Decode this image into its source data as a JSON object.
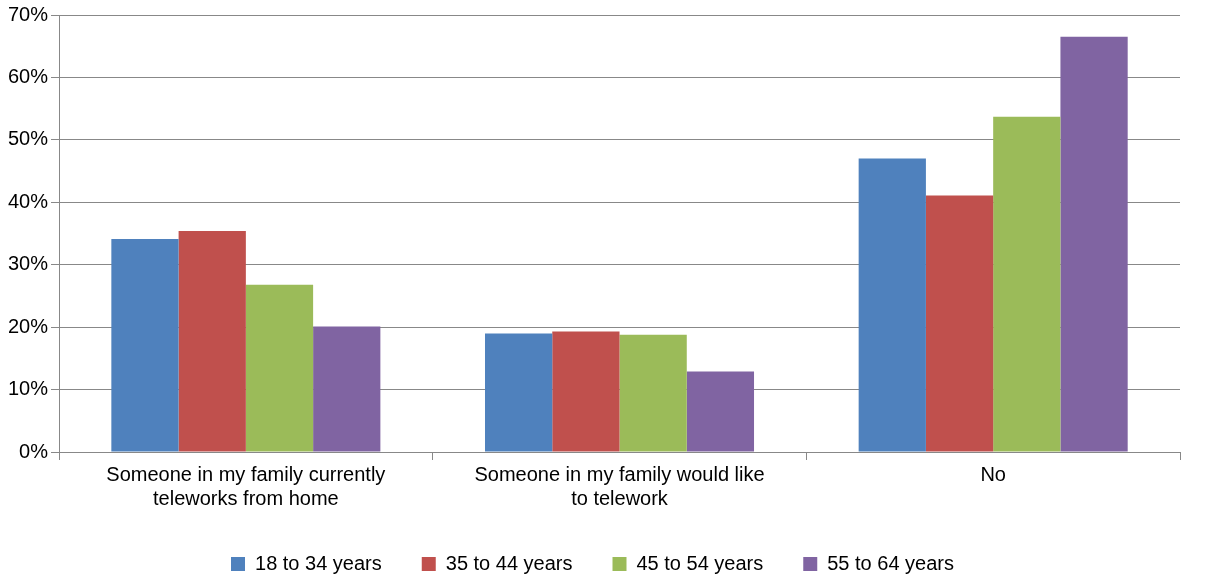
{
  "chart_data": {
    "type": "bar",
    "categories": [
      "Someone in my family currently teleworks from home",
      "Someone in my family would like to telework",
      "No"
    ],
    "series": [
      {
        "name": "18 to 34 years",
        "color": "#4f81bd",
        "values": [
          34.1,
          19.0,
          47.0
        ]
      },
      {
        "name": "35 to 44 years",
        "color": "#c0504d",
        "values": [
          35.4,
          19.3,
          41.1
        ]
      },
      {
        "name": "45 to 54 years",
        "color": "#9bbb59",
        "values": [
          26.8,
          18.8,
          53.7
        ]
      },
      {
        "name": "55 to 64 years",
        "color": "#8064a2",
        "values": [
          20.1,
          12.9,
          66.5
        ]
      }
    ],
    "ylim": [
      0,
      70
    ],
    "yticks": [
      {
        "value": 0,
        "label": "0%"
      },
      {
        "value": 10,
        "label": "10%"
      },
      {
        "value": 20,
        "label": "20%"
      },
      {
        "value": 30,
        "label": "30%"
      },
      {
        "value": 40,
        "label": "40%"
      },
      {
        "value": 50,
        "label": "50%"
      },
      {
        "value": 60,
        "label": "60%"
      },
      {
        "value": 70,
        "label": "70%"
      }
    ],
    "grid": "y",
    "legend": "bottom"
  }
}
